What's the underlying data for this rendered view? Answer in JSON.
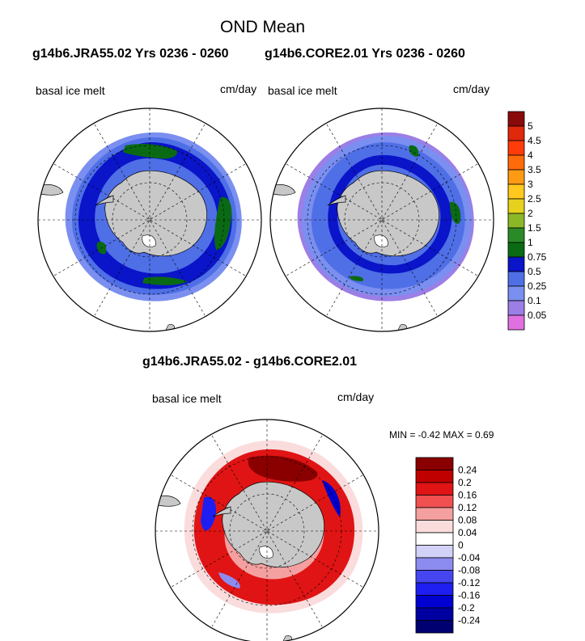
{
  "header": {
    "title": "OND Mean",
    "subtitle_left": "g14b6.JRA55.02  Yrs 0236 - 0260",
    "subtitle_right": "g14b6.CORE2.01  Yrs 0236 - 0260"
  },
  "diff": {
    "title": "g14b6.JRA55.02 - g14b6.CORE2.01",
    "minmax": "MIN =  -0.42 MAX =   0.69"
  },
  "chart_data": [
    {
      "type": "heatmap",
      "projection": "south-polar-stereographic",
      "left_label": "basal ice melt",
      "right_label": "cm/day",
      "colorbar": {
        "levels": [
          "0.05",
          "0.1",
          "0.25",
          "0.5",
          "0.75",
          "1",
          "1.5",
          "2",
          "2.5",
          "3",
          "3.5",
          "4",
          "4.5",
          "5"
        ],
        "colors": [
          "#e070e0",
          "#9b7fe6",
          "#7a8ff0",
          "#4f6fe6",
          "#0a14c8",
          "#0a6a14",
          "#2a8a28",
          "#8cb828",
          "#e6d21e",
          "#ffc81e",
          "#ff9a14",
          "#ff6a0a",
          "#ff3c0a",
          "#e0280a",
          "#8a0a0a"
        ]
      }
    },
    {
      "type": "heatmap",
      "projection": "south-polar-stereographic",
      "left_label": "basal ice melt",
      "right_label": "cm/day",
      "colorbar": "shared"
    },
    {
      "type": "heatmap",
      "projection": "south-polar-stereographic",
      "left_label": "basal ice melt",
      "right_label": "cm/day",
      "min": -0.42,
      "max": 0.69,
      "colorbar": {
        "levels": [
          "-0.24",
          "-0.2",
          "-0.16",
          "-0.12",
          "-0.08",
          "-0.04",
          "0",
          "0.04",
          "0.08",
          "0.12",
          "0.16",
          "0.2",
          "0.24"
        ],
        "colors": [
          "#000070",
          "#0000a0",
          "#0000d0",
          "#1e1ef0",
          "#4646f0",
          "#8c8cf0",
          "#d2d2f8",
          "#ffffff",
          "#fadcdc",
          "#f5a0a0",
          "#f05050",
          "#e01414",
          "#c00000",
          "#8a0000"
        ]
      }
    }
  ]
}
